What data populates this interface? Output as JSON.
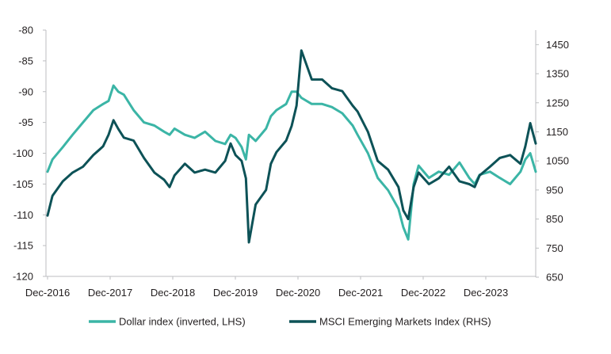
{
  "chart_data": {
    "type": "line",
    "title": "",
    "xlabel": "",
    "ylabel_left": "",
    "ylabel_right": "",
    "x_ticks": [
      "Dec-2016",
      "Dec-2017",
      "Dec-2018",
      "Dec-2019",
      "Dec-2020",
      "Dec-2021",
      "Dec-2022",
      "Dec-2023"
    ],
    "y_left": {
      "min": -120,
      "max": -80,
      "ticks": [
        "-80",
        "-85",
        "-90",
        "-95",
        "-100",
        "-105",
        "-110",
        "-115",
        "-120"
      ]
    },
    "y_right": {
      "min": 650,
      "max": 1500,
      "ticks": [
        "1450",
        "1350",
        "1250",
        "1150",
        "1050",
        "950",
        "850",
        "750",
        "650"
      ]
    },
    "grid": false,
    "legend_position": "bottom",
    "series": [
      {
        "name": "Dollar index (inverted, LHS)",
        "axis": "left",
        "color": "#3bb5a6",
        "x": [
          2016.92,
          2017.0,
          2017.17,
          2017.33,
          2017.5,
          2017.67,
          2017.83,
          2017.92,
          2018.0,
          2018.08,
          2018.17,
          2018.33,
          2018.5,
          2018.67,
          2018.83,
          2018.92,
          2019.0,
          2019.17,
          2019.33,
          2019.5,
          2019.67,
          2019.83,
          2019.92,
          2020.0,
          2020.1,
          2020.17,
          2020.22,
          2020.33,
          2020.5,
          2020.58,
          2020.67,
          2020.83,
          2020.92,
          2021.0,
          2021.08,
          2021.25,
          2021.42,
          2021.58,
          2021.75,
          2021.92,
          2022.0,
          2022.17,
          2022.33,
          2022.5,
          2022.67,
          2022.75,
          2022.83,
          2022.92,
          2023.0,
          2023.17,
          2023.33,
          2023.5,
          2023.67,
          2023.83,
          2023.92,
          2024.0,
          2024.17,
          2024.33,
          2024.5,
          2024.67,
          2024.75,
          2024.83,
          2024.92
        ],
        "y": [
          -103,
          -101,
          -99,
          -97,
          -95,
          -93,
          -92,
          -91.5,
          -89,
          -90,
          -90.5,
          -93,
          -95,
          -95.5,
          -96.5,
          -97,
          -96,
          -97,
          -97.5,
          -96.5,
          -98,
          -98.5,
          -97,
          -97.5,
          -99,
          -101,
          -97,
          -98,
          -96,
          -94,
          -93,
          -92,
          -90,
          -90,
          -91,
          -92,
          -92,
          -92.5,
          -93.5,
          -95.5,
          -97,
          -100,
          -104,
          -106,
          -109,
          -112,
          -114,
          -105,
          -102,
          -104,
          -103,
          -103.5,
          -101.5,
          -104,
          -105,
          -103.5,
          -103,
          -104,
          -105,
          -103,
          -101,
          -100,
          -103
        ]
      },
      {
        "name": "MSCI Emerging Markets Index (RHS)",
        "axis": "right",
        "color": "#0d5257",
        "x": [
          2016.92,
          2017.0,
          2017.17,
          2017.33,
          2017.5,
          2017.67,
          2017.83,
          2017.92,
          2018.0,
          2018.08,
          2018.17,
          2018.33,
          2018.5,
          2018.67,
          2018.83,
          2018.92,
          2019.0,
          2019.17,
          2019.33,
          2019.5,
          2019.67,
          2019.83,
          2019.92,
          2020.0,
          2020.1,
          2020.17,
          2020.22,
          2020.33,
          2020.5,
          2020.58,
          2020.67,
          2020.83,
          2020.92,
          2021.0,
          2021.08,
          2021.25,
          2021.42,
          2021.58,
          2021.75,
          2021.92,
          2022.0,
          2022.17,
          2022.33,
          2022.5,
          2022.67,
          2022.75,
          2022.83,
          2022.92,
          2023.0,
          2023.17,
          2023.33,
          2023.5,
          2023.67,
          2023.83,
          2023.92,
          2024.0,
          2024.17,
          2024.33,
          2024.5,
          2024.67,
          2024.75,
          2024.83,
          2024.92
        ],
        "y": [
          862,
          930,
          980,
          1010,
          1030,
          1070,
          1100,
          1140,
          1190,
          1160,
          1130,
          1120,
          1060,
          1010,
          985,
          960,
          1000,
          1040,
          1010,
          1020,
          1010,
          1050,
          1110,
          1070,
          1050,
          990,
          770,
          900,
          950,
          1040,
          1080,
          1120,
          1170,
          1240,
          1430,
          1330,
          1330,
          1300,
          1290,
          1240,
          1220,
          1150,
          1050,
          1020,
          960,
          880,
          850,
          960,
          1010,
          970,
          990,
          1030,
          980,
          970,
          960,
          1000,
          1030,
          1060,
          1070,
          1040,
          1100,
          1180,
          1110
        ]
      }
    ]
  }
}
